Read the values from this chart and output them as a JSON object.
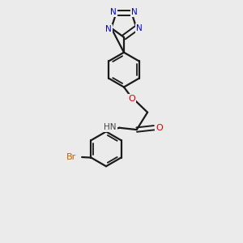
{
  "background_color": "#ebebeb",
  "bond_color": "#1a1a1a",
  "nitrogen_color": "#0000ee",
  "oxygen_color": "#dd0000",
  "bromine_color": "#bb6600",
  "hydrogen_color": "#444444",
  "figsize": [
    3.0,
    3.0
  ],
  "dpi": 100,
  "xlim": [
    0,
    10
  ],
  "ylim": [
    0,
    10
  ]
}
